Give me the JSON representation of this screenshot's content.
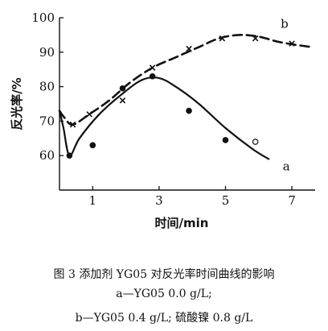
{
  "chart_data": {
    "type": "line",
    "xlabel": "时间/min",
    "ylabel": "反光率/%",
    "xlim": [
      0,
      7.7
    ],
    "ylim": [
      50,
      100
    ],
    "xticks": [
      1,
      3,
      5,
      7
    ],
    "yticks": [
      60,
      70,
      80,
      90,
      100
    ],
    "grid": false,
    "series": [
      {
        "name": "a",
        "curve": {
          "x": [
            0,
            0.12,
            0.3,
            0.6,
            1.2,
            1.9,
            2.5,
            3.0,
            3.5,
            4.2,
            5.0,
            5.8,
            6.3
          ],
          "y": [
            73,
            68,
            60,
            65,
            72,
            78,
            82,
            82.5,
            80,
            75,
            68,
            62,
            59
          ]
        },
        "points": {
          "x": [
            0.3,
            1.0,
            1.9,
            2.8,
            3.9,
            5.0,
            5.9
          ],
          "y": [
            60,
            63,
            79.5,
            83,
            73,
            64.5,
            64
          ]
        },
        "marker": "circle"
      },
      {
        "name": "b",
        "curve": {
          "x": [
            0,
            0.15,
            0.4,
            0.9,
            1.5,
            2.1,
            2.8,
            3.5,
            4.2,
            4.8,
            5.4,
            6.0,
            6.6,
            7.2,
            7.6
          ],
          "y": [
            73,
            71,
            69,
            72,
            76,
            81,
            85.5,
            88.5,
            91.5,
            94,
            95,
            94.5,
            93,
            92,
            91.5
          ]
        },
        "points": {
          "x": [
            0.4,
            0.9,
            1.9,
            2.8,
            3.9,
            4.9,
            5.9,
            7.0
          ],
          "y": [
            69,
            72,
            76,
            85.5,
            91,
            94,
            94,
            92.5
          ]
        },
        "marker": "x"
      }
    ]
  },
  "caption": {
    "title": "图 3   添加剂 YG05 对反光率时间曲线的影响",
    "line_a": "a—YG05 0.0 g/L;",
    "line_b": "b—YG05 0.4 g/L;  硫酸镍  0.8 g/L"
  }
}
